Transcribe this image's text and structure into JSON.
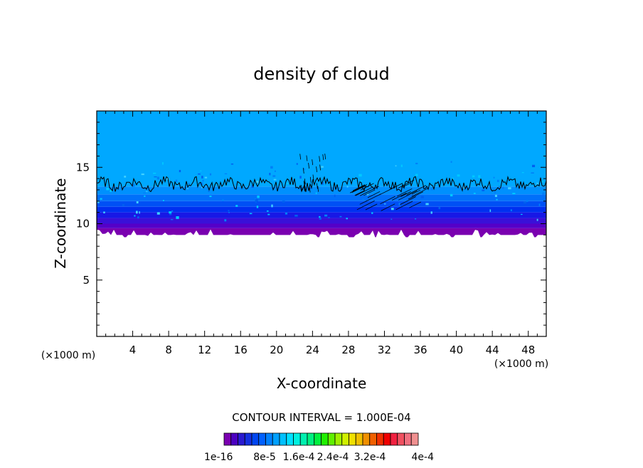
{
  "chart_data": {
    "type": "heatmap",
    "title": "density of cloud",
    "xlabel": "X-coordinate",
    "ylabel": "Z-coordinate",
    "x_unit": "(×1000 m)",
    "y_unit": "(×1000 m)",
    "xlim": [
      0,
      50
    ],
    "ylim": [
      0,
      20
    ],
    "x_ticks": [
      4,
      8,
      12,
      16,
      20,
      24,
      28,
      32,
      36,
      40,
      44,
      48
    ],
    "y_ticks": [
      5,
      10,
      15
    ],
    "contour_interval_text": "CONTOUR INTERVAL = 1.000E-04",
    "cloud_base_z": 9.0,
    "contour_line_z": 13.5,
    "bands": [
      {
        "z0": 8.8,
        "z1": 9.6,
        "color": "#7a00b0"
      },
      {
        "z0": 9.6,
        "z1": 10.0,
        "color": "#5500c8"
      },
      {
        "z0": 10.0,
        "z1": 10.5,
        "color": "#3a10d8"
      },
      {
        "z0": 10.5,
        "z1": 11.0,
        "color": "#1818e6"
      },
      {
        "z0": 11.0,
        "z1": 11.5,
        "color": "#0030f0"
      },
      {
        "z0": 11.5,
        "z1": 12.0,
        "color": "#0050f5"
      },
      {
        "z0": 12.0,
        "z1": 12.6,
        "color": "#0070fa"
      },
      {
        "z0": 12.6,
        "z1": 13.3,
        "color": "#0090fd"
      },
      {
        "z0": 13.3,
        "z1": 20.0,
        "color": "#00a8ff"
      }
    ],
    "colorbar": {
      "colors": [
        "#7a00b0",
        "#4b00c0",
        "#2a1ad0",
        "#1430e0",
        "#0046f0",
        "#0060ff",
        "#0080ff",
        "#00a0ff",
        "#00c0ff",
        "#00e0ff",
        "#00f0e0",
        "#00f0b0",
        "#00f080",
        "#00f040",
        "#20f000",
        "#60f000",
        "#a0f000",
        "#d0f000",
        "#f0e000",
        "#f0c000",
        "#f09000",
        "#f06000",
        "#f03000",
        "#f00000",
        "#f02040",
        "#f05060",
        "#f07080",
        "#f09090"
      ],
      "labels": [
        "1e-16",
        "8e-5",
        "1.6e-4",
        "2.4e-4",
        "3.2e-4",
        "4e-4"
      ]
    }
  }
}
